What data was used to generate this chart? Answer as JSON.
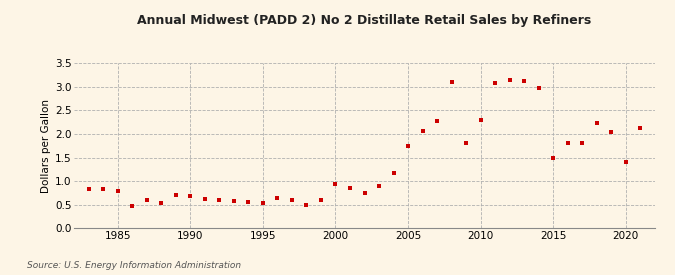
{
  "title": "Annual Midwest (PADD 2) No 2 Distillate Retail Sales by Refiners",
  "ylabel": "Dollars per Gallon",
  "source": "Source: U.S. Energy Information Administration",
  "background_color": "#fdf5e6",
  "marker_color": "#cc0000",
  "years": [
    1983,
    1984,
    1985,
    1986,
    1987,
    1988,
    1989,
    1990,
    1991,
    1992,
    1993,
    1994,
    1995,
    1996,
    1997,
    1998,
    1999,
    2000,
    2001,
    2002,
    2003,
    2004,
    2005,
    2006,
    2007,
    2008,
    2009,
    2010,
    2011,
    2012,
    2013,
    2014,
    2015,
    2016,
    2017,
    2018,
    2019,
    2020,
    2021
  ],
  "values": [
    0.83,
    0.83,
    0.79,
    0.48,
    0.59,
    0.53,
    0.7,
    0.68,
    0.61,
    0.59,
    0.57,
    0.55,
    0.54,
    0.65,
    0.59,
    0.49,
    0.59,
    0.93,
    0.85,
    0.74,
    0.9,
    1.17,
    1.75,
    2.07,
    2.27,
    3.1,
    1.8,
    2.3,
    3.08,
    3.15,
    3.12,
    2.97,
    1.49,
    1.81,
    1.81,
    2.24,
    2.05,
    1.4,
    2.12
  ],
  "ylim": [
    0.0,
    3.5
  ],
  "yticks": [
    0.0,
    0.5,
    1.0,
    1.5,
    2.0,
    2.5,
    3.0,
    3.5
  ],
  "xlim": [
    1982,
    2022
  ],
  "xticks": [
    1985,
    1990,
    1995,
    2000,
    2005,
    2010,
    2015,
    2020
  ]
}
